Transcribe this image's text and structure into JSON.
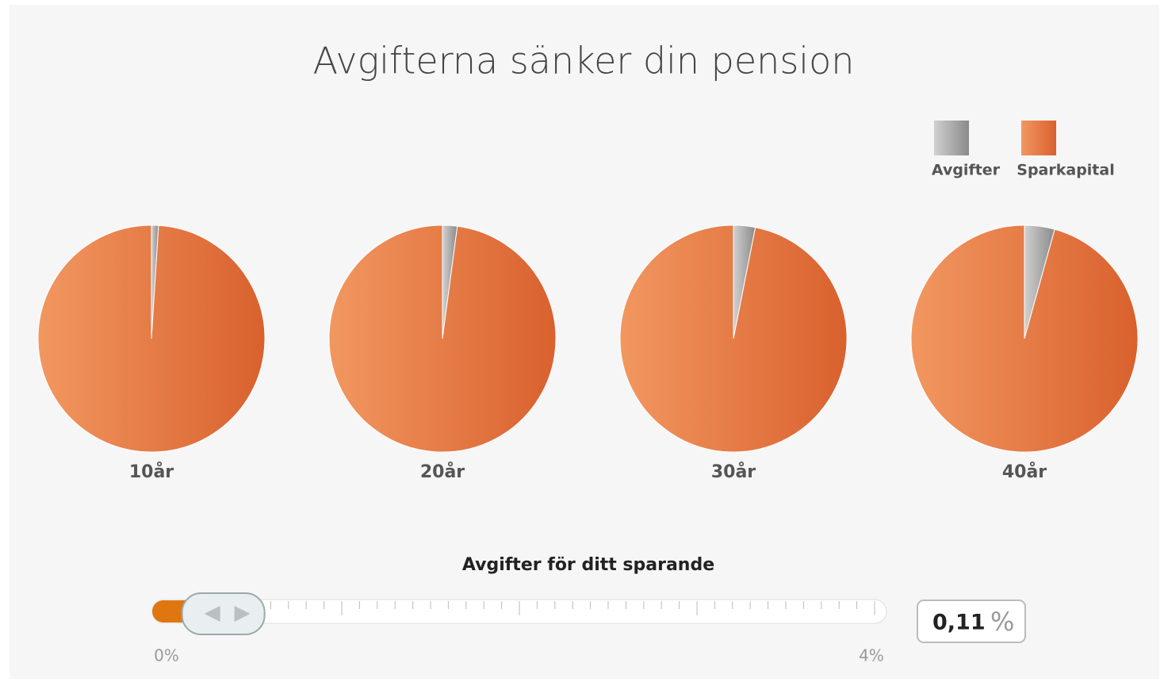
{
  "title": "Avgifterna sänker din pension",
  "chart_data": [
    {
      "type": "pie",
      "label": "10år",
      "categories": [
        "Avgifter",
        "Sparkapital"
      ],
      "values": [
        1,
        99
      ],
      "colors": [
        "#a9a9a9",
        "#e5733d"
      ]
    },
    {
      "type": "pie",
      "label": "20år",
      "categories": [
        "Avgifter",
        "Sparkapital"
      ],
      "values": [
        2.1,
        97.9
      ],
      "colors": [
        "#a9a9a9",
        "#e5733d"
      ]
    },
    {
      "type": "pie",
      "label": "30år",
      "categories": [
        "Avgifter",
        "Sparkapital"
      ],
      "values": [
        3.1,
        96.9
      ],
      "colors": [
        "#a9a9a9",
        "#e5733d"
      ]
    },
    {
      "type": "pie",
      "label": "40år",
      "categories": [
        "Avgifter",
        "Sparkapital"
      ],
      "values": [
        4.3,
        95.7
      ],
      "colors": [
        "#a9a9a9",
        "#e5733d"
      ]
    }
  ],
  "slider": {
    "label": "Avgifter för ditt sparande",
    "min": {
      "value": 0,
      "label": "0%"
    },
    "max": {
      "value": 4,
      "label": "4%"
    },
    "value": 0.11,
    "value_label": "0,11",
    "unit": "%"
  }
}
